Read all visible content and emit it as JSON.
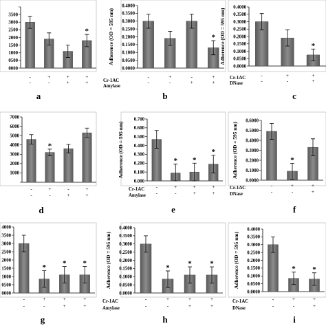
{
  "chart_data": [
    {
      "panel": "a",
      "type": "bar",
      "ylabel": "",
      "ylim": [
        0,
        0.4
      ],
      "tick_step": 0.05,
      "tick_labels": [
        "0000",
        "0500",
        "1000",
        "1500",
        "2000",
        "2500",
        "3000",
        "3500",
        ""
      ],
      "values": [
        0.3,
        0.19,
        0.11,
        0.18
      ],
      "errors": [
        0.04,
        0.04,
        0.04,
        0.04
      ],
      "significant": [
        false,
        false,
        false,
        true
      ],
      "rows": [
        {
          "label": "",
          "signs": [
            "-",
            "+",
            "+",
            "+"
          ]
        },
        {
          "label": "",
          "signs": [
            "-",
            "-",
            "+",
            "+"
          ]
        }
      ]
    },
    {
      "panel": "b",
      "type": "bar",
      "ylabel": "Adherence (OD = 595 nm)",
      "ylim": [
        0,
        0.4
      ],
      "tick_step": 0.05,
      "tick_labels": [
        "0.0000",
        "0.0500",
        "0.1000",
        "0.1500",
        "0.2000",
        "0.2500",
        "0.3000",
        "0.3500",
        "0.4000"
      ],
      "values": [
        0.3,
        0.19,
        0.3,
        0.13
      ],
      "errors": [
        0.045,
        0.045,
        0.045,
        0.045
      ],
      "significant": [
        false,
        false,
        false,
        true
      ],
      "rows": [
        {
          "label": "Cr-1AC",
          "signs": [
            "-",
            "+",
            "-",
            "+"
          ]
        },
        {
          "label": "Amylase",
          "signs": [
            "-",
            "-",
            "+",
            "+"
          ]
        }
      ]
    },
    {
      "panel": "c",
      "type": "bar",
      "ylabel": "Adherence (OD = 595 nm)",
      "ylim": [
        0,
        0.4
      ],
      "tick_step": 0.05,
      "tick_labels": [
        "0.0000",
        "0.0500",
        "0.1000",
        "0.1500",
        "0.2000",
        "0.2500",
        "0.3000",
        "0.3500",
        "0.4000"
      ],
      "values": [
        0.3,
        0.19,
        0.075
      ],
      "errors": [
        0.055,
        0.055,
        0.04
      ],
      "significant": [
        false,
        false,
        true
      ],
      "rows": [
        {
          "label": "Cr-1AC",
          "signs": [
            "-",
            "+",
            "+"
          ]
        },
        {
          "label": "DNase",
          "signs": [
            "-",
            "-",
            "+"
          ]
        }
      ]
    },
    {
      "panel": "d",
      "type": "bar",
      "ylabel": "",
      "ylim": [
        0,
        0.7
      ],
      "tick_step": 0.1,
      "tick_labels": [
        "",
        "1000",
        "2000",
        "3000",
        "4000",
        "5000",
        "6000",
        "7000"
      ],
      "values": [
        0.46,
        0.32,
        0.36,
        0.53
      ],
      "errors": [
        0.05,
        0.035,
        0.045,
        0.05
      ],
      "significant": [
        false,
        true,
        false,
        false
      ],
      "rows": [
        {
          "label": "",
          "signs": [
            "-",
            "+",
            "-",
            "+"
          ]
        },
        {
          "label": "",
          "signs": [
            "-",
            "-",
            "+",
            "+"
          ]
        }
      ]
    },
    {
      "panel": "e",
      "type": "bar",
      "ylabel": "Adherence (OD = 595 nm)",
      "ylim": [
        0,
        0.7
      ],
      "tick_step": 0.1,
      "tick_labels": [
        "0.000",
        "0.100",
        "0.200",
        "0.300",
        "0.400",
        "0.500",
        "0.600",
        "0.700"
      ],
      "values": [
        0.47,
        0.09,
        0.1,
        0.19
      ],
      "errors": [
        0.1,
        0.1,
        0.1,
        0.1
      ],
      "significant": [
        false,
        true,
        true,
        true
      ],
      "rows": [
        {
          "label": "Cr-1AC",
          "signs": [
            "-",
            "+",
            "+",
            "+"
          ]
        },
        {
          "label": "Amylase",
          "signs": [
            "-",
            "-",
            "+",
            "+"
          ]
        }
      ]
    },
    {
      "panel": "f",
      "type": "bar",
      "ylabel": "Adherence (OD = 595 nm)",
      "ylim": [
        0,
        0.6
      ],
      "tick_step": 0.1,
      "tick_labels": [
        "0.0000",
        "0.1000",
        "0.2000",
        "0.3000",
        "0.4000",
        "0.5000",
        "0.6000"
      ],
      "values": [
        0.49,
        0.09,
        0.33
      ],
      "errors": [
        0.08,
        0.08,
        0.085
      ],
      "significant": [
        false,
        true,
        false
      ],
      "rows": [
        {
          "label": "Cr-1AC",
          "signs": [
            "-",
            "+",
            "+"
          ]
        },
        {
          "label": "DNase",
          "signs": [
            "-",
            "-",
            "+"
          ]
        }
      ]
    },
    {
      "panel": "g",
      "type": "bar",
      "ylabel": "",
      "ylim": [
        0,
        0.4
      ],
      "tick_step": 0.05,
      "tick_labels": [
        "0000",
        "0500",
        "1000",
        "1500",
        "2000",
        "2500",
        "3000",
        "3500",
        "4000"
      ],
      "values": [
        0.3,
        0.085,
        0.11,
        0.11
      ],
      "errors": [
        0.05,
        0.05,
        0.05,
        0.05
      ],
      "significant": [
        false,
        true,
        true,
        true
      ],
      "rows": [
        {
          "label": "",
          "signs": [
            "-",
            "+",
            "+",
            "+"
          ]
        },
        {
          "label": "",
          "signs": [
            "-",
            "-",
            "+",
            "+"
          ]
        }
      ]
    },
    {
      "panel": "h",
      "type": "bar",
      "ylabel": "Adherence (OD = 595 nm)",
      "ylim": [
        0,
        0.4
      ],
      "tick_step": 0.05,
      "tick_labels": [
        "0.0000",
        "0.0500",
        "0.1000",
        "0.1500",
        "0.2000",
        "0.2500",
        "0.3000",
        "0.3500",
        "0.4000"
      ],
      "values": [
        0.3,
        0.085,
        0.11,
        0.11
      ],
      "errors": [
        0.05,
        0.05,
        0.05,
        0.05
      ],
      "significant": [
        false,
        true,
        true,
        true
      ],
      "rows": [
        {
          "label": "Cr-1AC",
          "signs": [
            "-",
            "+",
            "+",
            "+"
          ]
        },
        {
          "label": "Amylase",
          "signs": [
            "-",
            "-",
            "+",
            "+"
          ]
        }
      ]
    },
    {
      "panel": "i",
      "type": "bar",
      "ylabel": "Adherence (OD = 595 nm)",
      "ylim": [
        0,
        0.4
      ],
      "tick_step": 0.05,
      "tick_labels": [
        "0.0000",
        "0.0500",
        "0.1000",
        "0.1500",
        "0.2000",
        "0.2500",
        "0.3000",
        "0.3500",
        "0.4000"
      ],
      "values": [
        0.3,
        0.085,
        0.08
      ],
      "errors": [
        0.05,
        0.04,
        0.04
      ],
      "significant": [
        false,
        true,
        true
      ],
      "rows": [
        {
          "label": "Cr-1AC",
          "signs": [
            "-",
            "+",
            "+"
          ]
        },
        {
          "label": "DNase",
          "signs": [
            "-",
            "-",
            "+"
          ]
        }
      ]
    }
  ],
  "significance_symbol": "*",
  "colors": {
    "bar_light": "#8c8c8c",
    "bar_dark": "#5a5a5a",
    "frame": "#b0b0b0"
  }
}
